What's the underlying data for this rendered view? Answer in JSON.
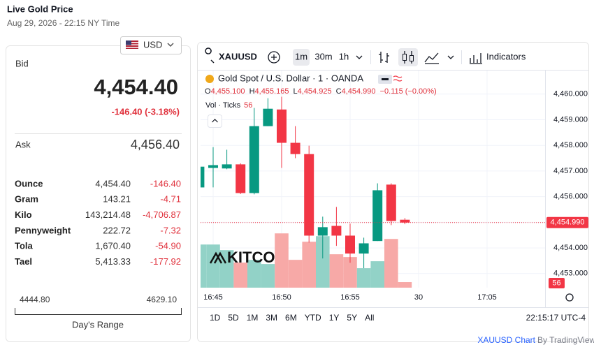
{
  "header": {
    "title": "Live Gold Price",
    "timestamp": "Aug 29, 2026 - 22:15 NY Time"
  },
  "currency": "USD",
  "quote": {
    "bid_label": "Bid",
    "bid": "4,454.40",
    "change": "-146.40 (-3.18%)",
    "ask_label": "Ask",
    "ask": "4,456.40"
  },
  "units": {
    "rows": [
      [
        "Ounce",
        "4,454.40",
        "-146.40"
      ],
      [
        "Gram",
        "143.21",
        "-4.71"
      ],
      [
        "Kilo",
        "143,214.48",
        "-4,706.87"
      ],
      [
        "Pennyweight",
        "222.72",
        "-7.32"
      ],
      [
        "Tola",
        "1,670.40",
        "-54.90"
      ],
      [
        "Tael",
        "5,413.33",
        "-177.92"
      ]
    ]
  },
  "range": {
    "low": "4444.80",
    "high": "4629.10",
    "label": "Day's Range"
  },
  "toolbar": {
    "symbol": "XAUUSD",
    "intervals": [
      "1m",
      "30m",
      "1h"
    ],
    "indicators": "Indicators"
  },
  "chart_data": {
    "type": "candlestick",
    "title": "Gold Spot / U.S. Dollar · 1 · OANDA",
    "legend": {
      "open_label": "O",
      "open": "4,455.100",
      "high_label": "H",
      "high": "4,455.165",
      "low_label": "L",
      "low": "4,454.925",
      "close_label": "C",
      "close": "4,454.990",
      "change": "−0.115 (−0.00%)"
    },
    "volume_label": "Vol · Ticks",
    "categories": [
      null,
      "16:45",
      null,
      null,
      null,
      null,
      "16:50",
      null,
      null,
      null,
      null,
      "16:55",
      null,
      null,
      null,
      null,
      "30",
      null,
      null,
      null,
      null,
      "17:05"
    ],
    "open": [
      4456.36,
      4457.12,
      4457.1,
      4457.26,
      4456.14,
      4458.75,
      4459.4,
      4458.1,
      4457.66,
      4454.48,
      4454.86,
      4454.48,
      4453.78,
      4454.27,
      4456.47,
      4455.1,
      null,
      null,
      null,
      null,
      null,
      null
    ],
    "high": [
      4457.3,
      4457.93,
      4457.83,
      4457.3,
      4459.46,
      4459.84,
      4459.9,
      4458.75,
      4457.99,
      4455.22,
      4455.6,
      4454.95,
      4454.4,
      4456.52,
      4456.52,
      4455.165,
      null,
      null,
      null,
      null,
      null,
      null
    ],
    "low": [
      4456.3,
      4456.36,
      4457.07,
      4456.1,
      4456.09,
      4458.75,
      4457.12,
      4457.5,
      4454.21,
      4453.59,
      4454.08,
      4453.42,
      4453.21,
      4454.27,
      4454.89,
      4454.925,
      null,
      null,
      null,
      null,
      null,
      null
    ],
    "close": [
      4457.17,
      4457.23,
      4457.26,
      4456.14,
      4458.75,
      4459.43,
      4458.1,
      4457.66,
      4454.48,
      4454.81,
      4454.48,
      4453.78,
      4454.18,
      4456.25,
      4455.05,
      4454.99,
      null,
      null,
      null,
      null,
      null,
      null
    ],
    "volume": [
      434,
      434,
      378,
      252,
      280,
      238,
      546,
      280,
      462,
      518,
      336,
      308,
      196,
      266,
      490,
      56,
      null,
      null,
      null,
      null,
      null,
      null
    ],
    "up_color": "#089981",
    "down_color": "#f23645",
    "up_volume_color": "#92d2c7",
    "down_volume_color": "#f7a9a7",
    "ylim": [
      4452.45,
      4460.92
    ],
    "yticks": [
      {
        "value": 4453,
        "label": "4,453.000"
      },
      {
        "value": 4454,
        "label": "4,454.000"
      },
      {
        "value": 4455,
        "label": "4,455.000"
      },
      {
        "value": 4456,
        "label": "4,456.000"
      },
      {
        "value": 4457,
        "label": "4,457.000"
      },
      {
        "value": 4458,
        "label": "4,458.000"
      },
      {
        "value": 4459,
        "label": "4,459.000"
      },
      {
        "value": 4460,
        "label": "4,460.000"
      }
    ],
    "volume_lim": [
      0,
      2184
    ],
    "last_price_label": "4,454.990",
    "grid": true,
    "watermark": "KITCO"
  },
  "ranges": [
    "1D",
    "5D",
    "1M",
    "3M",
    "6M",
    "YTD",
    "1Y",
    "5Y",
    "All"
  ],
  "clock": "22:15:17 UTC-4",
  "footer": {
    "link": "XAUUSD Chart",
    "by": "By TradingView"
  }
}
